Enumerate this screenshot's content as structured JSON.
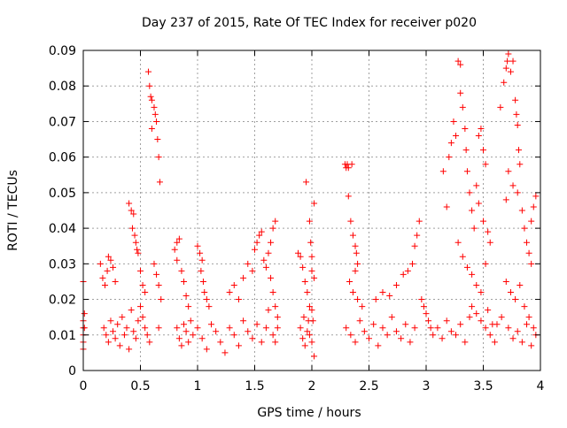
{
  "chart_data": {
    "type": "scatter",
    "title": "Day 237 of 2015, Rate Of TEC Index for receiver p020",
    "xlabel": "GPS time / hours",
    "ylabel": "ROTI / TECUs",
    "xlim": [
      0,
      4
    ],
    "ylim": [
      0,
      0.09
    ],
    "xticks": [
      0,
      0.5,
      1,
      1.5,
      2,
      2.5,
      3,
      3.5,
      4
    ],
    "xtick_labels": [
      "0",
      "0.5",
      "1",
      "1.5",
      "2",
      "2.5",
      "3",
      "3.5",
      "4"
    ],
    "yticks": [
      0,
      0.01,
      0.02,
      0.03,
      0.04,
      0.05,
      0.06,
      0.07,
      0.08,
      0.09
    ],
    "ytick_labels": [
      "0",
      "0.01",
      "0.02",
      "0.03",
      "0.04",
      "0.05",
      "0.06",
      "0.07",
      "0.08",
      "0.09"
    ],
    "grid": true,
    "marker": "+",
    "color": "#ff0000",
    "series": [
      {
        "name": "p020",
        "points": [
          [
            0.0,
            0.025
          ],
          [
            0.0,
            0.014
          ],
          [
            0.0,
            0.012
          ],
          [
            0.0,
            0.01
          ],
          [
            0.0,
            0.008
          ],
          [
            0.0,
            0.006
          ],
          [
            0.01,
            0.012
          ],
          [
            0.01,
            0.016
          ],
          [
            0.15,
            0.03
          ],
          [
            0.17,
            0.026
          ],
          [
            0.19,
            0.024
          ],
          [
            0.21,
            0.028
          ],
          [
            0.22,
            0.032
          ],
          [
            0.24,
            0.031
          ],
          [
            0.26,
            0.029
          ],
          [
            0.28,
            0.025
          ],
          [
            0.18,
            0.012
          ],
          [
            0.2,
            0.01
          ],
          [
            0.22,
            0.008
          ],
          [
            0.24,
            0.014
          ],
          [
            0.26,
            0.011
          ],
          [
            0.28,
            0.009
          ],
          [
            0.3,
            0.013
          ],
          [
            0.32,
            0.007
          ],
          [
            0.34,
            0.015
          ],
          [
            0.36,
            0.01
          ],
          [
            0.38,
            0.012
          ],
          [
            0.4,
            0.006
          ],
          [
            0.42,
            0.017
          ],
          [
            0.44,
            0.011
          ],
          [
            0.46,
            0.009
          ],
          [
            0.48,
            0.014
          ],
          [
            0.4,
            0.047
          ],
          [
            0.42,
            0.045
          ],
          [
            0.44,
            0.044
          ],
          [
            0.43,
            0.04
          ],
          [
            0.45,
            0.038
          ],
          [
            0.46,
            0.036
          ],
          [
            0.47,
            0.034
          ],
          [
            0.48,
            0.033
          ],
          [
            0.5,
            0.028
          ],
          [
            0.52,
            0.024
          ],
          [
            0.54,
            0.022
          ],
          [
            0.5,
            0.018
          ],
          [
            0.52,
            0.015
          ],
          [
            0.54,
            0.012
          ],
          [
            0.56,
            0.01
          ],
          [
            0.58,
            0.008
          ],
          [
            0.57,
            0.084
          ],
          [
            0.58,
            0.08
          ],
          [
            0.59,
            0.077
          ],
          [
            0.6,
            0.076
          ],
          [
            0.6,
            0.068
          ],
          [
            0.62,
            0.074
          ],
          [
            0.63,
            0.072
          ],
          [
            0.64,
            0.07
          ],
          [
            0.65,
            0.065
          ],
          [
            0.66,
            0.06
          ],
          [
            0.67,
            0.053
          ],
          [
            0.62,
            0.03
          ],
          [
            0.64,
            0.027
          ],
          [
            0.66,
            0.024
          ],
          [
            0.68,
            0.02
          ],
          [
            0.66,
            0.012
          ],
          [
            0.8,
            0.034
          ],
          [
            0.82,
            0.036
          ],
          [
            0.84,
            0.037
          ],
          [
            0.82,
            0.031
          ],
          [
            0.86,
            0.028
          ],
          [
            0.88,
            0.025
          ],
          [
            0.9,
            0.021
          ],
          [
            0.92,
            0.018
          ],
          [
            0.82,
            0.012
          ],
          [
            0.84,
            0.009
          ],
          [
            0.86,
            0.007
          ],
          [
            0.88,
            0.013
          ],
          [
            0.9,
            0.011
          ],
          [
            0.92,
            0.008
          ],
          [
            0.94,
            0.014
          ],
          [
            0.96,
            0.01
          ],
          [
            1.0,
            0.035
          ],
          [
            1.02,
            0.033
          ],
          [
            1.04,
            0.031
          ],
          [
            1.03,
            0.028
          ],
          [
            1.05,
            0.025
          ],
          [
            1.06,
            0.022
          ],
          [
            1.08,
            0.02
          ],
          [
            1.1,
            0.018
          ],
          [
            1.0,
            0.012
          ],
          [
            1.04,
            0.009
          ],
          [
            1.08,
            0.006
          ],
          [
            1.12,
            0.013
          ],
          [
            1.16,
            0.011
          ],
          [
            1.2,
            0.008
          ],
          [
            1.24,
            0.005
          ],
          [
            1.28,
            0.012
          ],
          [
            1.32,
            0.01
          ],
          [
            1.36,
            0.007
          ],
          [
            1.4,
            0.014
          ],
          [
            1.44,
            0.011
          ],
          [
            1.48,
            0.009
          ],
          [
            1.52,
            0.013
          ],
          [
            1.56,
            0.008
          ],
          [
            1.6,
            0.012
          ],
          [
            1.28,
            0.022
          ],
          [
            1.32,
            0.024
          ],
          [
            1.36,
            0.02
          ],
          [
            1.4,
            0.026
          ],
          [
            1.44,
            0.03
          ],
          [
            1.48,
            0.028
          ],
          [
            1.5,
            0.034
          ],
          [
            1.52,
            0.036
          ],
          [
            1.54,
            0.038
          ],
          [
            1.56,
            0.039
          ],
          [
            1.58,
            0.031
          ],
          [
            1.6,
            0.029
          ],
          [
            1.62,
            0.033
          ],
          [
            1.64,
            0.036
          ],
          [
            1.66,
            0.04
          ],
          [
            1.68,
            0.042
          ],
          [
            1.64,
            0.026
          ],
          [
            1.66,
            0.022
          ],
          [
            1.68,
            0.018
          ],
          [
            1.7,
            0.015
          ],
          [
            1.62,
            0.017
          ],
          [
            1.66,
            0.01
          ],
          [
            1.7,
            0.012
          ],
          [
            1.68,
            0.008
          ],
          [
            1.88,
            0.033
          ],
          [
            1.9,
            0.032
          ],
          [
            1.92,
            0.029
          ],
          [
            1.94,
            0.025
          ],
          [
            1.96,
            0.022
          ],
          [
            1.98,
            0.018
          ],
          [
            2.0,
            0.017
          ],
          [
            2.0,
            0.028
          ],
          [
            1.95,
            0.053
          ],
          [
            1.99,
            0.036
          ],
          [
            1.98,
            0.042
          ],
          [
            2.02,
            0.047
          ],
          [
            2.0,
            0.032
          ],
          [
            2.02,
            0.026
          ],
          [
            2.01,
            0.014
          ],
          [
            2.02,
            0.004
          ],
          [
            1.9,
            0.012
          ],
          [
            1.92,
            0.009
          ],
          [
            1.94,
            0.007
          ],
          [
            1.96,
            0.011
          ],
          [
            1.98,
            0.01
          ],
          [
            2.0,
            0.008
          ],
          [
            1.93,
            0.015
          ],
          [
            1.97,
            0.014
          ],
          [
            2.29,
            0.058
          ],
          [
            2.3,
            0.057
          ],
          [
            2.31,
            0.058
          ],
          [
            2.32,
            0.057
          ],
          [
            2.35,
            0.058
          ],
          [
            2.32,
            0.049
          ],
          [
            2.34,
            0.042
          ],
          [
            2.36,
            0.038
          ],
          [
            2.38,
            0.035
          ],
          [
            2.39,
            0.033
          ],
          [
            2.4,
            0.03
          ],
          [
            2.38,
            0.028
          ],
          [
            2.33,
            0.025
          ],
          [
            2.36,
            0.022
          ],
          [
            2.4,
            0.02
          ],
          [
            2.44,
            0.018
          ],
          [
            2.3,
            0.012
          ],
          [
            2.34,
            0.01
          ],
          [
            2.38,
            0.008
          ],
          [
            2.42,
            0.014
          ],
          [
            2.46,
            0.011
          ],
          [
            2.5,
            0.009
          ],
          [
            2.54,
            0.013
          ],
          [
            2.58,
            0.007
          ],
          [
            2.62,
            0.012
          ],
          [
            2.66,
            0.01
          ],
          [
            2.7,
            0.015
          ],
          [
            2.74,
            0.011
          ],
          [
            2.78,
            0.009
          ],
          [
            2.82,
            0.013
          ],
          [
            2.86,
            0.008
          ],
          [
            2.9,
            0.012
          ],
          [
            2.56,
            0.02
          ],
          [
            2.62,
            0.022
          ],
          [
            2.68,
            0.021
          ],
          [
            2.74,
            0.024
          ],
          [
            2.8,
            0.027
          ],
          [
            2.84,
            0.028
          ],
          [
            2.88,
            0.03
          ],
          [
            2.9,
            0.035
          ],
          [
            2.92,
            0.038
          ],
          [
            2.94,
            0.042
          ],
          [
            2.96,
            0.02
          ],
          [
            2.98,
            0.018
          ],
          [
            3.0,
            0.016
          ],
          [
            3.02,
            0.014
          ],
          [
            3.04,
            0.012
          ],
          [
            3.06,
            0.01
          ],
          [
            3.1,
            0.012
          ],
          [
            3.14,
            0.009
          ],
          [
            3.18,
            0.014
          ],
          [
            3.22,
            0.011
          ],
          [
            3.26,
            0.01
          ],
          [
            3.3,
            0.013
          ],
          [
            3.34,
            0.008
          ],
          [
            3.38,
            0.015
          ],
          [
            3.15,
            0.056
          ],
          [
            3.18,
            0.046
          ],
          [
            3.2,
            0.06
          ],
          [
            3.22,
            0.064
          ],
          [
            3.24,
            0.07
          ],
          [
            3.26,
            0.066
          ],
          [
            3.28,
            0.087
          ],
          [
            3.3,
            0.086
          ],
          [
            3.3,
            0.078
          ],
          [
            3.32,
            0.074
          ],
          [
            3.34,
            0.068
          ],
          [
            3.35,
            0.062
          ],
          [
            3.36,
            0.056
          ],
          [
            3.38,
            0.05
          ],
          [
            3.4,
            0.045
          ],
          [
            3.42,
            0.04
          ],
          [
            3.28,
            0.036
          ],
          [
            3.32,
            0.032
          ],
          [
            3.36,
            0.029
          ],
          [
            3.4,
            0.027
          ],
          [
            3.44,
            0.024
          ],
          [
            3.48,
            0.022
          ],
          [
            3.52,
            0.03
          ],
          [
            3.46,
            0.066
          ],
          [
            3.48,
            0.068
          ],
          [
            3.5,
            0.062
          ],
          [
            3.52,
            0.058
          ],
          [
            3.44,
            0.052
          ],
          [
            3.46,
            0.047
          ],
          [
            3.5,
            0.042
          ],
          [
            3.54,
            0.039
          ],
          [
            3.56,
            0.036
          ],
          [
            3.4,
            0.018
          ],
          [
            3.44,
            0.016
          ],
          [
            3.48,
            0.014
          ],
          [
            3.52,
            0.012
          ],
          [
            3.56,
            0.01
          ],
          [
            3.6,
            0.008
          ],
          [
            3.54,
            0.017
          ],
          [
            3.58,
            0.013
          ],
          [
            3.65,
            0.074
          ],
          [
            3.68,
            0.081
          ],
          [
            3.7,
            0.085
          ],
          [
            3.71,
            0.087
          ],
          [
            3.72,
            0.089
          ],
          [
            3.74,
            0.084
          ],
          [
            3.76,
            0.087
          ],
          [
            3.78,
            0.076
          ],
          [
            3.79,
            0.072
          ],
          [
            3.8,
            0.069
          ],
          [
            3.81,
            0.062
          ],
          [
            3.82,
            0.058
          ],
          [
            3.8,
            0.05
          ],
          [
            3.76,
            0.052
          ],
          [
            3.72,
            0.056
          ],
          [
            3.7,
            0.048
          ],
          [
            3.84,
            0.045
          ],
          [
            3.86,
            0.04
          ],
          [
            3.88,
            0.036
          ],
          [
            3.9,
            0.033
          ],
          [
            3.92,
            0.03
          ],
          [
            3.94,
            0.046
          ],
          [
            3.96,
            0.049
          ],
          [
            3.92,
            0.042
          ],
          [
            3.7,
            0.025
          ],
          [
            3.74,
            0.022
          ],
          [
            3.78,
            0.02
          ],
          [
            3.82,
            0.024
          ],
          [
            3.86,
            0.018
          ],
          [
            3.9,
            0.015
          ],
          [
            3.94,
            0.012
          ],
          [
            3.96,
            0.01
          ],
          [
            3.72,
            0.012
          ],
          [
            3.76,
            0.009
          ],
          [
            3.8,
            0.011
          ],
          [
            3.84,
            0.008
          ],
          [
            3.88,
            0.013
          ],
          [
            3.92,
            0.007
          ],
          [
            3.66,
            0.015
          ],
          [
            3.62,
            0.013
          ]
        ]
      }
    ]
  }
}
